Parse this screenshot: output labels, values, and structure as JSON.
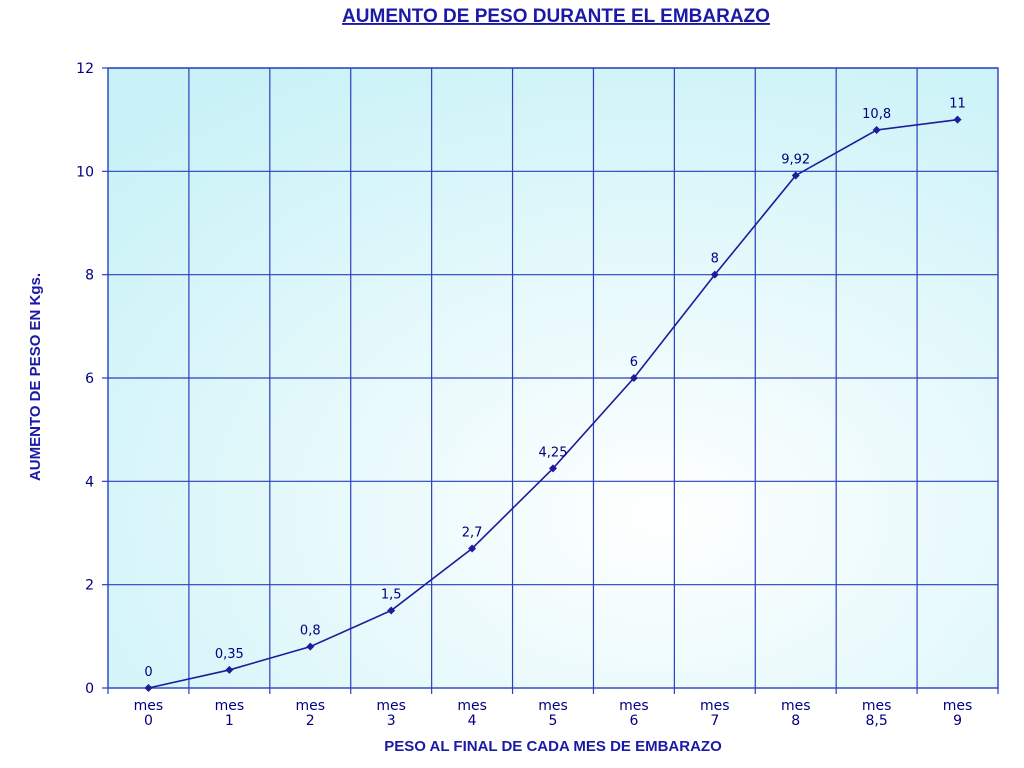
{
  "chart_data": {
    "type": "line",
    "title": "AUMENTO DE PESO DURANTE EL EMBARAZO",
    "xlabel": "PESO AL FINAL DE CADA MES DE EMBARAZO",
    "ylabel": "AUMENTO DE PESO EN Kgs.",
    "categories": [
      [
        "mes",
        "0"
      ],
      [
        "mes",
        "1"
      ],
      [
        "mes",
        "2"
      ],
      [
        "mes",
        "3"
      ],
      [
        "mes",
        "4"
      ],
      [
        "mes",
        "5"
      ],
      [
        "mes",
        "6"
      ],
      [
        "mes",
        "7"
      ],
      [
        "mes",
        "8"
      ],
      [
        "mes",
        "8,5"
      ],
      [
        "mes",
        "9"
      ]
    ],
    "values": [
      0,
      0.35,
      0.8,
      1.5,
      2.7,
      4.25,
      6,
      8,
      9.92,
      10.8,
      11
    ],
    "data_labels": [
      "0",
      "0,35",
      "0,8",
      "1,5",
      "2,7",
      "4,25",
      "6",
      "8",
      "9,92",
      "10,8",
      "11"
    ],
    "ylim": [
      0,
      12
    ],
    "yticks": [
      0,
      2,
      4,
      6,
      8,
      10,
      12
    ],
    "grid": true,
    "legend": "none",
    "colors": {
      "line": "#1c1c9c",
      "grid": "#2b3fbf",
      "plot_bg_edge": "#c8f2f7",
      "plot_bg_center": "#ffffff",
      "text": "#1a1aa6"
    }
  }
}
